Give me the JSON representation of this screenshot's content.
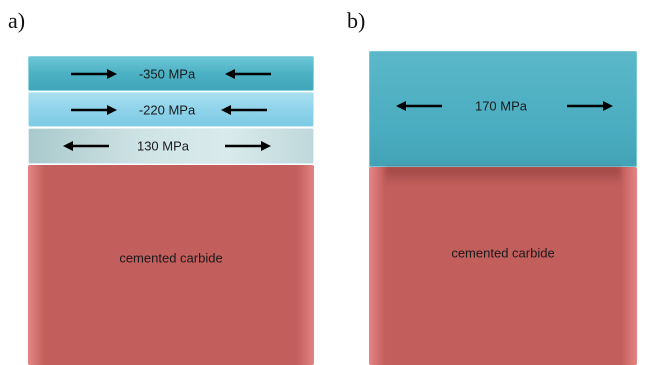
{
  "panel_a": {
    "label": "a)",
    "layers": [
      {
        "stress": "-350 MPa",
        "arrows": "inward"
      },
      {
        "stress": "-220 MPa",
        "arrows": "inward"
      },
      {
        "stress": "130 MPa",
        "arrows": "outward"
      }
    ],
    "substrate": "cemented carbide"
  },
  "panel_b": {
    "label": "b)",
    "layer": {
      "stress": "170 MPa",
      "arrows": "outward"
    },
    "substrate": "cemented carbide"
  },
  "colors": {
    "coating_dark": "#4fb3c6",
    "coating_light": "#8fd3ea",
    "coating_pale": "#cfe3e5",
    "carbide": "#c25e5c"
  },
  "icons": {
    "arrow_left": "arrow-left-icon",
    "arrow_right": "arrow-right-icon"
  }
}
